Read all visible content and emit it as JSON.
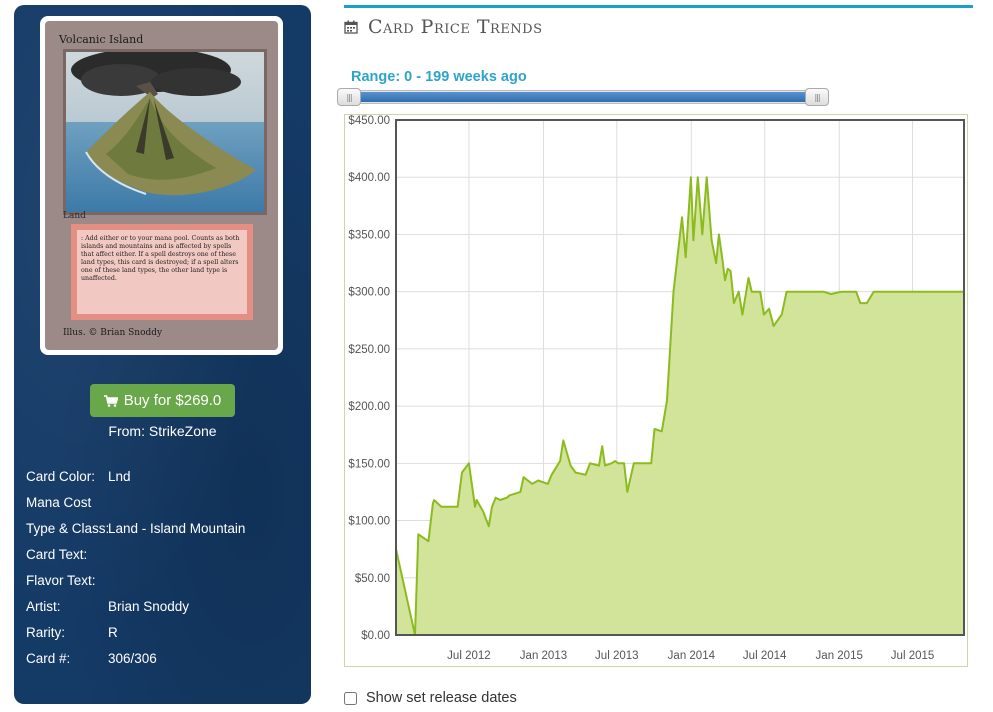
{
  "card": {
    "name": "Volcanic Island",
    "type_line": "Land",
    "rules_text": ": Add either  or  to your mana pool. Counts as both islands and mountains and is affected by spells that affect either. If a spell destroys one of these land types, this card is destroyed; if a spell alters one of these land types, the other land type is unaffected.",
    "illus": "Illus. © Brian Snoddy"
  },
  "buy": {
    "label": "Buy for $269.0",
    "icon": "shopping-cart-icon",
    "color": "#69a84a"
  },
  "from": "From: StrikeZone",
  "attributes": [
    {
      "label": "Card Color:",
      "value": "Lnd"
    },
    {
      "label": "Mana Cost",
      "value": ""
    },
    {
      "label": "Type & Class:",
      "value": "Land - Island Mountain"
    },
    {
      "label": "Card Text:",
      "value": ""
    },
    {
      "label": "Flavor Text:",
      "value": ""
    },
    {
      "label": "Artist:",
      "value": "Brian Snoddy"
    },
    {
      "label": "Rarity:",
      "value": "R"
    },
    {
      "label": "Card #:",
      "value": "306/306"
    }
  ],
  "section": {
    "title": "Card Price Trends",
    "icon": "calendar-icon",
    "accent": "#1aa1c8"
  },
  "range": {
    "label": "Range: 0 - 199 weeks ago",
    "min_weeks": 0,
    "max_weeks": 199
  },
  "release_toggle": {
    "label": "Show set release dates",
    "checked": false
  },
  "chart_data": {
    "type": "area",
    "title": "",
    "xlabel": "",
    "ylabel": "",
    "x_range": [
      "2012-01-03",
      "2015-11-05"
    ],
    "ylim": [
      0,
      450
    ],
    "y_ticks": [
      "$0.00",
      "$50.00",
      "$100.00",
      "$150.00",
      "$200.00",
      "$250.00",
      "$300.00",
      "$350.00",
      "$400.00",
      "$450.00"
    ],
    "x_ticks": [
      {
        "date": "2012-07-01",
        "label": "Jul 2012"
      },
      {
        "date": "2013-01-01",
        "label": "Jan 2013"
      },
      {
        "date": "2013-07-01",
        "label": "Jul 2013"
      },
      {
        "date": "2014-01-01",
        "label": "Jan 2014"
      },
      {
        "date": "2014-07-01",
        "label": "Jul 2014"
      },
      {
        "date": "2015-01-01",
        "label": "Jan 2015"
      },
      {
        "date": "2015-07-01",
        "label": "Jul 2015"
      }
    ],
    "grid": true,
    "line_color": "#8bbb1e",
    "fill_color": "#d2e49a",
    "series": [
      {
        "x": [
          "2012-01-03",
          "2012-02-19",
          "2012-02-27",
          "2012-03-23",
          "2012-04-03",
          "2012-04-06",
          "2012-04-24",
          "2012-05-11",
          "2012-05-23",
          "2012-06-03",
          "2012-06-14",
          "2012-07-01",
          "2012-07-16",
          "2012-07-20",
          "2012-08-05",
          "2012-08-19",
          "2012-08-27",
          "2012-09-05",
          "2012-09-16",
          "2012-10-03",
          "2012-10-09",
          "2012-11-05",
          "2012-11-13",
          "2012-12-04",
          "2012-12-19",
          "2013-01-12",
          "2013-01-21",
          "2013-02-11",
          "2013-02-19",
          "2013-03-09",
          "2013-03-21",
          "2013-04-15",
          "2013-04-26",
          "2013-05-18",
          "2013-05-26",
          "2013-06-02",
          "2013-06-18",
          "2013-06-27",
          "2013-07-04",
          "2013-07-19",
          "2013-07-27",
          "2013-08-12",
          "2013-08-20",
          "2013-08-31",
          "2013-09-24",
          "2013-10-02",
          "2013-10-20",
          "2013-11-02",
          "2013-11-18",
          "2013-12-09",
          "2013-12-18",
          "2013-12-31",
          "2014-01-06",
          "2014-01-17",
          "2014-01-28",
          "2014-02-08",
          "2014-02-20",
          "2014-03-03",
          "2014-03-10",
          "2014-03-18",
          "2014-03-25",
          "2014-04-01",
          "2014-04-08",
          "2014-04-16",
          "2014-04-28",
          "2014-05-07",
          "2014-05-22",
          "2014-05-30",
          "2014-06-10",
          "2014-06-20",
          "2014-06-29",
          "2014-07-12",
          "2014-07-23",
          "2014-08-12",
          "2014-08-24",
          "2014-09-04",
          "2014-09-19",
          "2014-10-03",
          "2014-10-26",
          "2014-11-11",
          "2014-11-22",
          "2014-12-12",
          "2015-01-07",
          "2015-01-28",
          "2015-02-12",
          "2015-02-22",
          "2015-03-10",
          "2015-03-27",
          "2015-04-14",
          "2015-05-10",
          "2015-05-21",
          "2015-06-10",
          "2015-06-30",
          "2015-07-17",
          "2015-08-16",
          "2015-09-12",
          "2015-10-01",
          "2015-10-13",
          "2015-10-25",
          "2015-11-05"
        ],
        "y": [
          75,
          0,
          88,
          82,
          115,
          118,
          112,
          112,
          112,
          112,
          142,
          150,
          112,
          118,
          108,
          95,
          112,
          120,
          118,
          120,
          122,
          125,
          138,
          132,
          135,
          132,
          140,
          152,
          170,
          148,
          142,
          140,
          150,
          148,
          165,
          148,
          150,
          152,
          150,
          150,
          125,
          150,
          150,
          150,
          150,
          180,
          178,
          205,
          300,
          365,
          330,
          400,
          345,
          400,
          350,
          400,
          345,
          325,
          350,
          330,
          310,
          320,
          318,
          290,
          300,
          280,
          312,
          300,
          300,
          300,
          280,
          285,
          270,
          280,
          300,
          300,
          300,
          300,
          300,
          300,
          300,
          298,
          300,
          300,
          300,
          290,
          290,
          300,
          300,
          300,
          300,
          300,
          300,
          300,
          300,
          300,
          300,
          300,
          300,
          300
        ]
      }
    ]
  }
}
